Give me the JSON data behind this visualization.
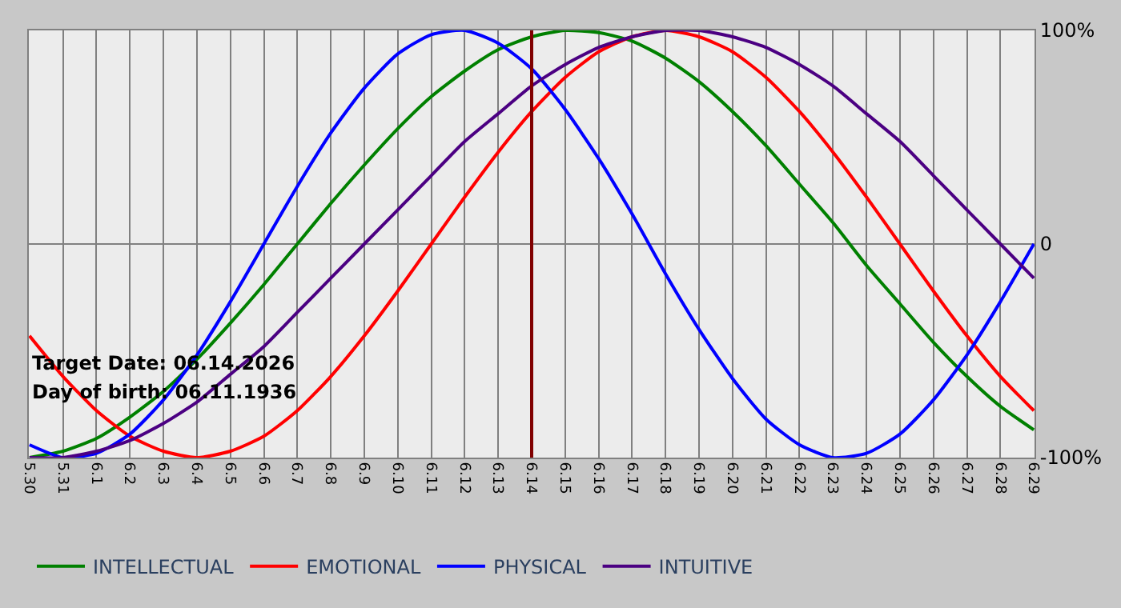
{
  "chart_data": {
    "type": "line",
    "categories": [
      "5.30",
      "5.31",
      "6.1",
      "6.2",
      "6.3",
      "6.4",
      "6.5",
      "6.6",
      "6.7",
      "6.8",
      "6.9",
      "6.10",
      "6.11",
      "6.12",
      "6.13",
      "6.14",
      "6.15",
      "6.16",
      "6.17",
      "6.18",
      "6.19",
      "6.20",
      "6.21",
      "6.22",
      "6.23",
      "6.24",
      "6.25",
      "6.26",
      "6.27",
      "6.28",
      "6.29"
    ],
    "series": [
      {
        "name": "INTELLECTUAL",
        "color": "#008000",
        "values": [
          -100,
          -97,
          -91,
          -81,
          -69,
          -54,
          -37,
          -19,
          0,
          19,
          37,
          54,
          69,
          81,
          91,
          97,
          100,
          99,
          95,
          87,
          76,
          62,
          46,
          28,
          10,
          -10,
          -28,
          -46,
          -62,
          -76,
          -87
        ]
      },
      {
        "name": "EMOTIONAL",
        "color": "#ff0000",
        "values": [
          -43,
          -62,
          -78,
          -90,
          -97,
          -100,
          -97,
          -90,
          -78,
          -62,
          -43,
          -22,
          0,
          22,
          43,
          62,
          78,
          90,
          97,
          100,
          97,
          90,
          78,
          62,
          43,
          22,
          0,
          -22,
          -43,
          -62,
          -78
        ]
      },
      {
        "name": "PHYSICAL",
        "color": "#0000ff",
        "values": [
          -94,
          -100,
          -98,
          -89,
          -73,
          -52,
          -27,
          0,
          27,
          52,
          73,
          89,
          98,
          100,
          94,
          82,
          63,
          40,
          14,
          -14,
          -40,
          -63,
          -82,
          -94,
          -100,
          -98,
          -89,
          -73,
          -52,
          -27,
          0
        ]
      },
      {
        "name": "INTUITIVE",
        "color": "#4b0082",
        "values": [
          -100,
          -100,
          -97,
          -92,
          -84,
          -74,
          -61,
          -48,
          -32,
          -16,
          0,
          16,
          32,
          48,
          61,
          74,
          84,
          92,
          97,
          100,
          100,
          97,
          92,
          84,
          74,
          61,
          48,
          32,
          16,
          0,
          -16
        ]
      }
    ],
    "ylim": [
      -100,
      100
    ],
    "yticks": [
      {
        "value": 100,
        "label": "100%"
      },
      0,
      {
        "value": -100,
        "label": "-100%"
      }
    ],
    "ref_lines": [
      {
        "axis": "x",
        "value": "6.14",
        "color": "#800000"
      }
    ],
    "annotations": [
      "Target Date: 06.14.2026",
      "Day of birth: 06.11.1936"
    ],
    "grid": true,
    "legend": "bottom",
    "marker": "none",
    "line_style": "solid"
  }
}
